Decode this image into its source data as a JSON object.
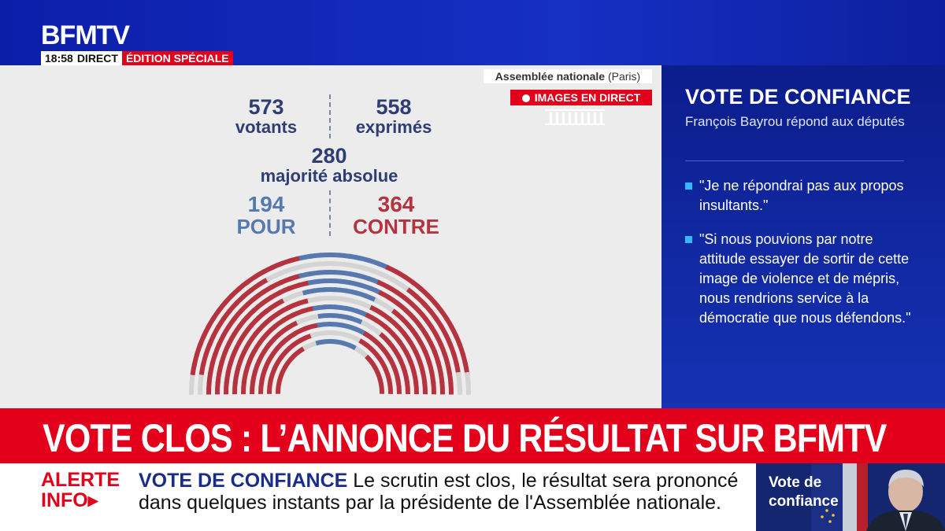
{
  "header": {
    "logo": "BFMTV",
    "time": "18:58",
    "direct": "DIRECT",
    "edition": "ÉDITION SPÉCIALE"
  },
  "location": {
    "name": "Assemblée nationale",
    "city": "(Paris)",
    "live_label": "IMAGES EN DIRECT"
  },
  "vote": {
    "votants_value": "573",
    "votants_label": "votants",
    "exprimes_value": "558",
    "exprimes_label": "exprimés",
    "majorite_value": "280",
    "majorite_label": "majorité absolue",
    "pour_value": "194",
    "pour_label": "POUR",
    "contre_value": "364",
    "contre_label": "CONTRE"
  },
  "colors": {
    "pour": "#5779b0",
    "contre": "#b5323f",
    "abstention": "#d4d4d4",
    "brand_red": "#e2001a",
    "brand_blue": "#0b1ea8"
  },
  "panel": {
    "title": "VOTE DE CONFIANCE",
    "subtitle": "François Bayrou répond aux députés",
    "quotes": [
      "\"Je ne répondrai pas aux propos insultants.\"",
      "\"Si nous pouvions par notre attitude essayer de sortir de cette image de violence et de mépris, nous rendrions service à la démocratie que nous défendons.\""
    ]
  },
  "headline": "VOTE CLOS : L’ANNONCE DU RÉSULTAT SUR BFMTV",
  "ticker": {
    "alert_line1": "ALERTE",
    "alert_line2": "INFO",
    "topic": "VOTE DE CONFIANCE",
    "text": "Le scrutin est clos, le résultat sera prononcé dans quelques instants par la présidente de l'Assemblée nationale."
  },
  "video": {
    "caption_line1": "Vote de",
    "caption_line2": "confiance"
  }
}
